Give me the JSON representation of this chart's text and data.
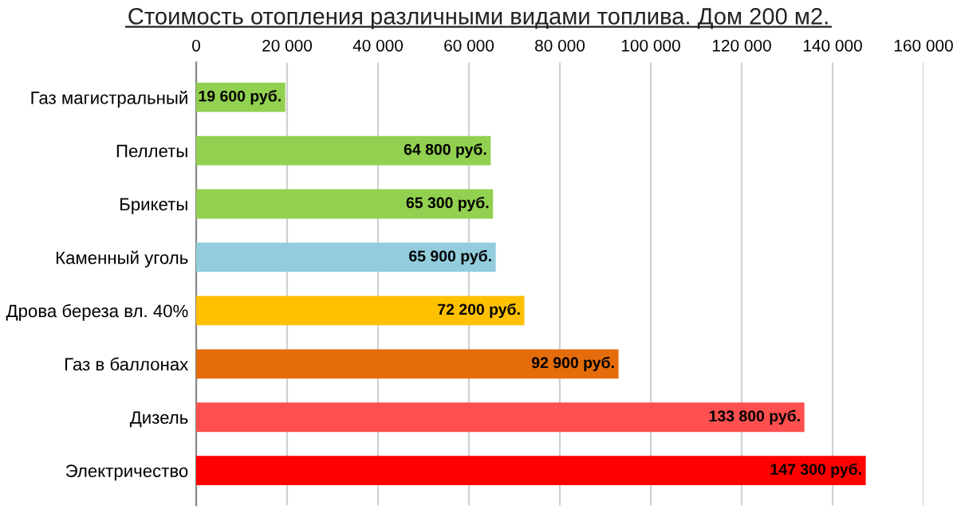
{
  "chart_data": {
    "type": "bar",
    "orientation": "horizontal",
    "title": "Стоимость отопления различными видами топлива. Дом 200 м2.",
    "categories": [
      "Газ магистральный",
      "Пеллеты",
      "Брикеты",
      "Каменный уголь",
      "Дрова береза вл. 40%",
      "Газ в баллонах",
      "Дизель",
      "Электричество"
    ],
    "values": [
      19600,
      64800,
      65300,
      65900,
      72200,
      92900,
      133800,
      147300
    ],
    "colors": [
      "#92d050",
      "#92d050",
      "#92d050",
      "#93cddd",
      "#ffc000",
      "#e46c0a",
      "#ff4f4f",
      "#ff0000"
    ],
    "value_labels": [
      "19 600 руб.",
      "64 800 руб.",
      "65 300 руб.",
      "65 900 руб.",
      "72 200 руб.",
      "92 900 руб.",
      "133 800 руб.",
      "147 300 руб."
    ],
    "xlim": [
      0,
      160000
    ],
    "xticks": [
      0,
      {
        "value": 20000,
        "label": "20 000"
      },
      {
        "value": 40000,
        "label": "40 000"
      },
      {
        "value": 60000,
        "label": "60 000"
      },
      {
        "value": 80000,
        "label": "80 000"
      },
      {
        "value": 100000,
        "label": "100 000"
      },
      {
        "value": 120000,
        "label": "120 000"
      },
      {
        "value": 140000,
        "label": "140 000"
      },
      {
        "value": 160000,
        "label": "160 000"
      }
    ],
    "grid": "x",
    "legend": false
  }
}
